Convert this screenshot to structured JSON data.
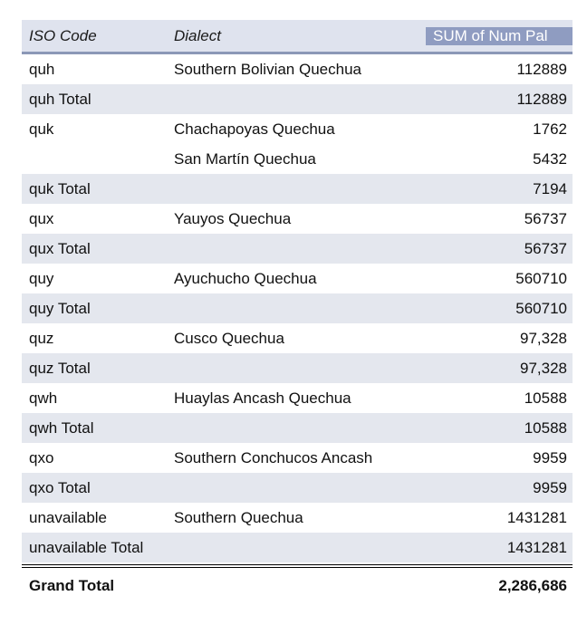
{
  "headers": {
    "iso_code": "ISO Code",
    "dialect": "Dialect",
    "sum": "SUM of Num Pal"
  },
  "rows": [
    {
      "type": "detail",
      "iso": "quh",
      "dialect": "Southern Bolivian Quechua",
      "value": "112889"
    },
    {
      "type": "subtotal",
      "iso": "quh Total",
      "dialect": "",
      "value": "112889"
    },
    {
      "type": "detail",
      "iso": "quk",
      "dialect": "Chachapoyas Quechua",
      "value": "1762"
    },
    {
      "type": "detail",
      "iso": "",
      "dialect": "San Martín Quechua",
      "value": "5432"
    },
    {
      "type": "subtotal",
      "iso": "quk Total",
      "dialect": "",
      "value": "7194"
    },
    {
      "type": "detail",
      "iso": "qux",
      "dialect": "Yauyos Quechua",
      "value": "56737"
    },
    {
      "type": "subtotal",
      "iso": "qux Total",
      "dialect": "",
      "value": "56737"
    },
    {
      "type": "detail",
      "iso": "quy",
      "dialect": "Ayuchucho Quechua",
      "value": "560710"
    },
    {
      "type": "subtotal",
      "iso": "quy Total",
      "dialect": "",
      "value": "560710"
    },
    {
      "type": "detail",
      "iso": "quz",
      "dialect": "Cusco Quechua",
      "value": "97,328"
    },
    {
      "type": "subtotal",
      "iso": "quz Total",
      "dialect": "",
      "value": "97,328"
    },
    {
      "type": "detail",
      "iso": "qwh",
      "dialect": "Huaylas Ancash Quechua",
      "value": "10588"
    },
    {
      "type": "subtotal",
      "iso": "qwh Total",
      "dialect": "",
      "value": "10588"
    },
    {
      "type": "detail",
      "iso": "qxo",
      "dialect": "Southern Conchucos Ancash",
      "value": "9959"
    },
    {
      "type": "subtotal",
      "iso": "qxo Total",
      "dialect": "",
      "value": "9959"
    },
    {
      "type": "detail",
      "iso": "unavailable",
      "dialect": "Southern Quechua",
      "value": "1431281"
    },
    {
      "type": "subtotal",
      "iso": "unavailable Total",
      "dialect": "",
      "value": "1431281"
    }
  ],
  "grand_total": {
    "label": "Grand Total",
    "value": "2,286,686"
  }
}
